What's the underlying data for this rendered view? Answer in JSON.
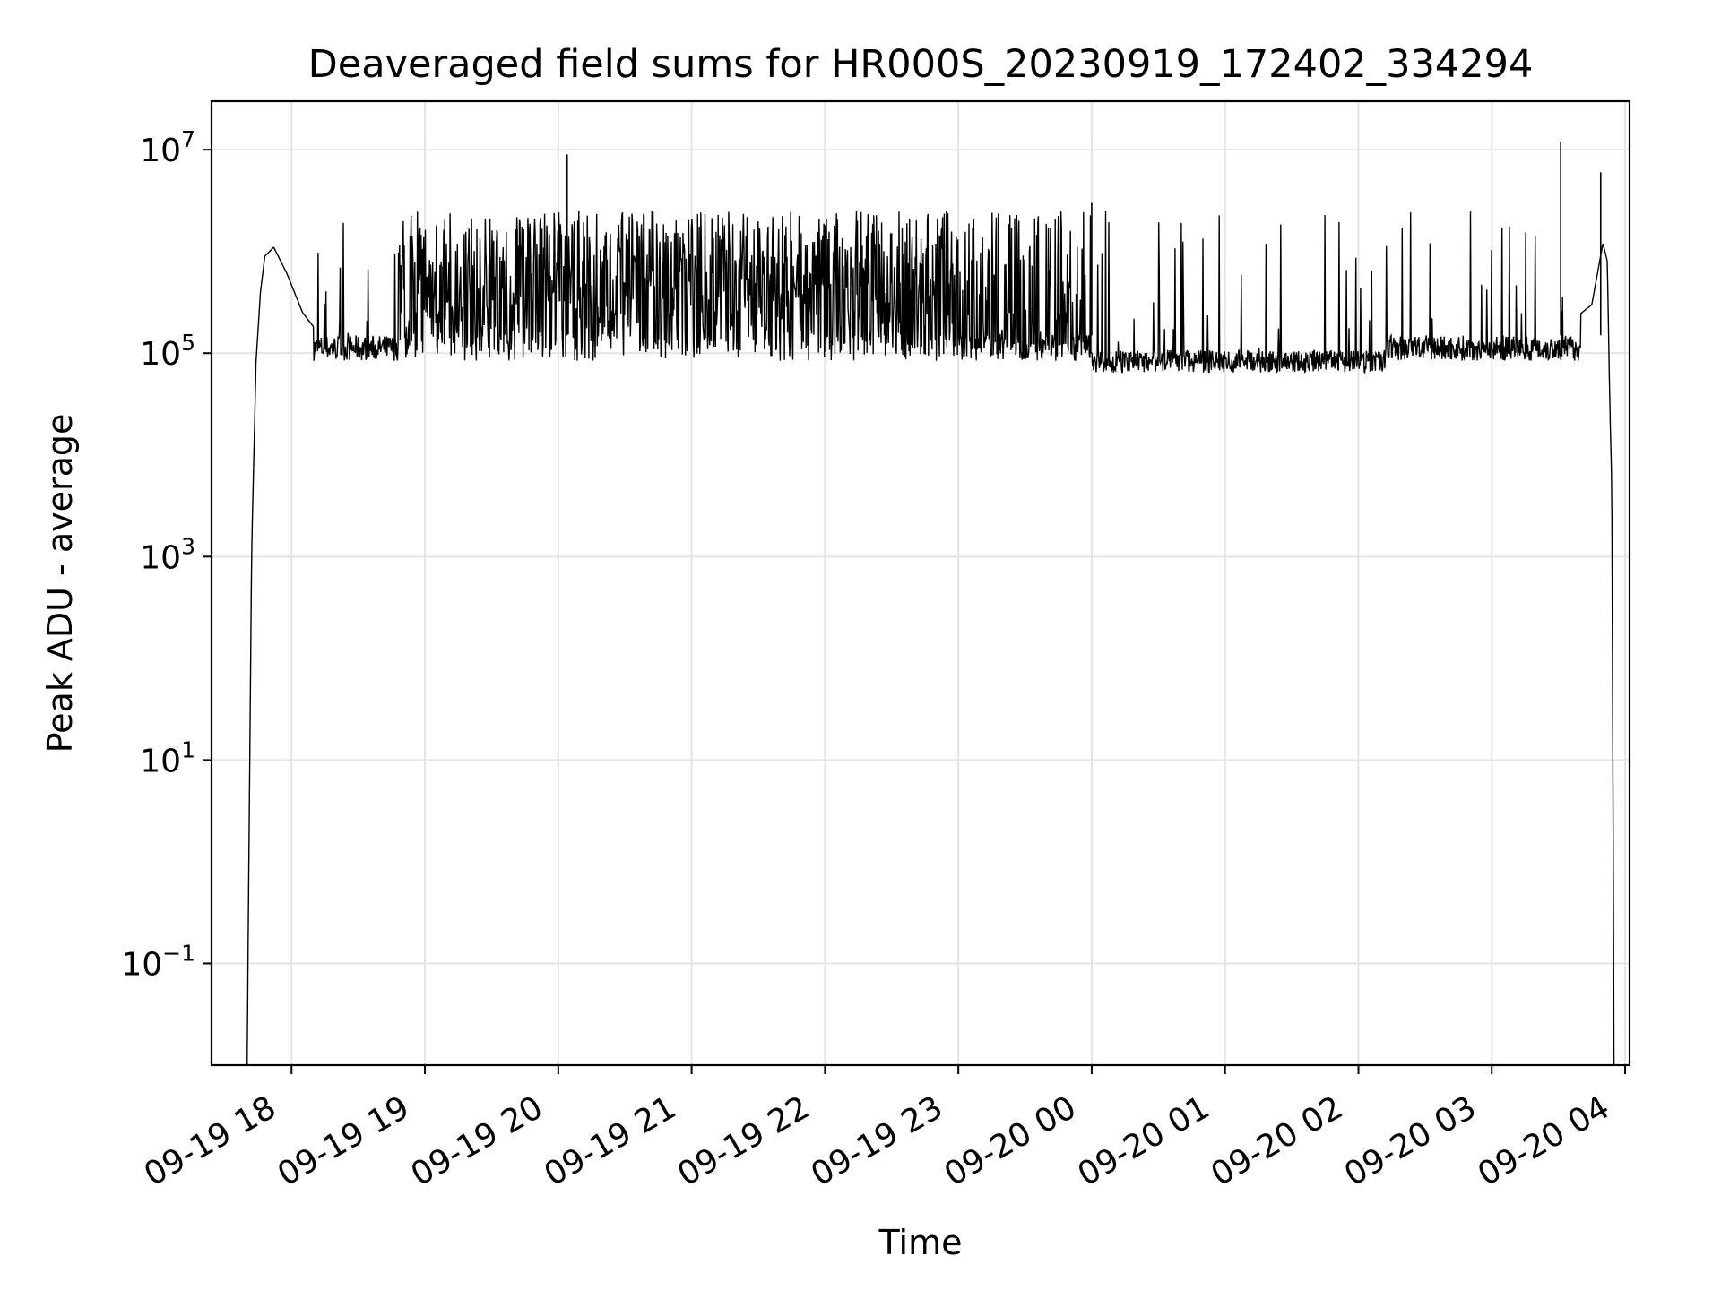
{
  "chart_data": {
    "type": "line",
    "title": "Deaveraged field sums for HR000S_20230919_172402_334294",
    "xlabel": "Time",
    "ylabel": "Peak ADU - average",
    "y_scale": "log",
    "ylim": [
      0.01,
      30000000
    ],
    "xlim": [
      "2023-09-19 17:24",
      "2023-09-20 04:02"
    ],
    "grid": true,
    "line_color": "#000000",
    "x_ticks": [
      "09-19 18",
      "09-19 19",
      "09-19 20",
      "09-19 21",
      "09-19 22",
      "09-19 23",
      "09-20 00",
      "09-20 01",
      "09-20 02",
      "09-20 03",
      "09-20 04"
    ],
    "x_tick_times": [
      "2023-09-19 18:00",
      "2023-09-19 19:00",
      "2023-09-19 20:00",
      "2023-09-19 21:00",
      "2023-09-19 22:00",
      "2023-09-19 23:00",
      "2023-09-20 00:00",
      "2023-09-20 01:00",
      "2023-09-20 02:00",
      "2023-09-20 03:00",
      "2023-09-20 04:00"
    ],
    "y_ticks": [
      {
        "value": 10000000,
        "base": "10",
        "exp": "7"
      },
      {
        "value": 100000,
        "base": "10",
        "exp": "5"
      },
      {
        "value": 1000,
        "base": "10",
        "exp": "3"
      },
      {
        "value": 10,
        "base": "10",
        "exp": "1"
      },
      {
        "value": 0.1,
        "base": "10",
        "exp": "−1"
      }
    ],
    "series": [
      {
        "x": [
          "2023-09-19 17:40",
          "2023-09-19 17:41",
          "2023-09-19 17:42",
          "2023-09-19 17:44",
          "2023-09-19 17:46",
          "2023-09-19 17:48",
          "2023-09-19 17:52",
          "2023-09-19 17:58",
          "2023-09-19 18:05",
          "2023-09-19 18:15",
          "2023-09-19 18:30",
          "2023-09-19 19:00",
          "2023-09-19 19:30",
          "2023-09-19 20:00",
          "2023-09-19 20:30",
          "2023-09-19 21:00",
          "2023-09-19 21:30",
          "2023-09-19 22:00",
          "2023-09-19 22:30",
          "2023-09-19 23:00",
          "2023-09-19 23:30",
          "2023-09-20 00:00",
          "2023-09-20 00:30",
          "2023-09-20 01:00",
          "2023-09-20 01:30",
          "2023-09-20 02:00",
          "2023-09-20 02:30",
          "2023-09-20 03:00",
          "2023-09-20 03:20",
          "2023-09-20 03:35",
          "2023-09-20 03:45",
          "2023-09-20 03:50",
          "2023-09-20 03:52",
          "2023-09-20 03:53",
          "2023-09-20 03:54",
          "2023-09-20 03:55"
        ],
        "y": [
          0.01,
          3,
          1000,
          80000,
          400000,
          900000,
          1100000,
          600000,
          250000,
          130000,
          110000,
          1000000,
          1100000,
          1500000,
          1000000,
          1000000,
          900000,
          800000,
          700000,
          500000,
          120000,
          90000,
          90000,
          85000,
          90000,
          90000,
          100000,
          100000,
          120000,
          200000,
          300000,
          1200000,
          800000,
          40000,
          5000,
          0.01
        ]
      }
    ],
    "spikes": [
      {
        "x": "2023-09-19 20:04",
        "y": 9000000
      },
      {
        "x": "2023-09-20 03:31",
        "y": 12000000
      },
      {
        "x": "2023-09-20 03:49",
        "y": 6000000
      },
      {
        "x": "2023-09-20 00:00",
        "y": 3000000
      }
    ]
  }
}
